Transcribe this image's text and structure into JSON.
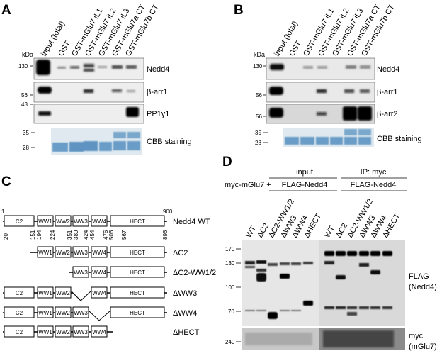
{
  "panels": {
    "a": "A",
    "b": "B",
    "c": "C",
    "d": "D"
  },
  "kda": "kDa",
  "lanes_ab": [
    "input (total)",
    "GST",
    "GST-mGlu7 iL1",
    "GST-mGlu7 iL2",
    "GST-mGlu7 iL3",
    "GST-mGlu7a CT",
    "GST-mGlu7b CT"
  ],
  "panel_a": {
    "mw": {
      "m130": "130",
      "m56": "56",
      "m43": "43",
      "m35": "35",
      "m28": "28"
    },
    "labels": {
      "nedd4": "Nedd4",
      "barr1": "β-arr1",
      "pp1": "PP1γ1",
      "cbb": "CBB staining"
    }
  },
  "panel_b": {
    "mw": {
      "m130": "130",
      "m56a": "56",
      "m56b": "56",
      "m35": "35",
      "m28": "28"
    },
    "labels": {
      "nedd4": "Nedd4",
      "barr1": "β-arr1",
      "barr2": "β-arr2",
      "cbb": "CBB staining"
    }
  },
  "panel_c": {
    "start": "1",
    "end": "900",
    "positions": [
      "20",
      "151",
      "194",
      "224",
      "351",
      "380",
      "424",
      "454",
      "476",
      "506",
      "567",
      "896"
    ],
    "constructs": [
      {
        "name": "Nedd4 WT"
      },
      {
        "name": "ΔC2"
      },
      {
        "name": "ΔC2-WW1/2"
      },
      {
        "name": "ΔWW3"
      },
      {
        "name": "ΔWW4"
      },
      {
        "name": "ΔHECT"
      }
    ],
    "domains": {
      "c2": "C2",
      "ww1": "WW1",
      "ww2": "WW2",
      "ww3": "WW3",
      "ww4": "WW4",
      "hect": "HECT"
    }
  },
  "panel_d": {
    "myc": "myc-mGlu7 +",
    "input": "input",
    "ip": "IP: myc",
    "flag_input": "FLAG-Nedd4",
    "flag_ip": "FLAG-Nedd4",
    "lanes": [
      "WT",
      "ΔC2",
      "ΔC2-WW1/2",
      "ΔWW3",
      "ΔWW4",
      "ΔHECT",
      "WT",
      "ΔC2",
      "ΔC2-WW1/2",
      "ΔWW3",
      "ΔWW4",
      "ΔHECT"
    ],
    "mw": {
      "m170": "170",
      "m130": "130",
      "m100": "100",
      "m70": "70",
      "m240": "240"
    },
    "labels": {
      "flag1": "FLAG",
      "flag2": "(Nedd4)",
      "myc1": "myc",
      "myc2": "(mGlu7)"
    }
  }
}
